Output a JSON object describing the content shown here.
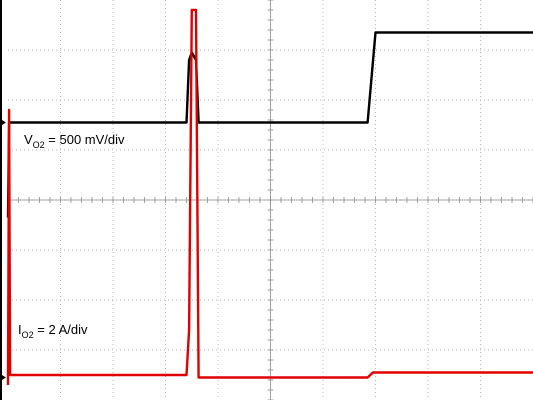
{
  "chart_data": {
    "type": "line",
    "grid": true,
    "grid_divisions": {
      "x": 10,
      "y": 8
    },
    "series": [
      {
        "label_main": "V",
        "label_sub": "O2",
        "label_rest": " = 500 mV/div",
        "color": "#000000",
        "x_div": [
          0,
          0.02,
          0.04,
          3.4,
          3.45,
          3.5,
          3.58,
          3.63,
          3.68,
          6.85,
          7.0,
          10
        ],
        "y_div": [
          4.35,
          2.45,
          2.45,
          2.45,
          1.2,
          1.05,
          1.2,
          2.45,
          2.45,
          2.45,
          0.65,
          0.65
        ]
      },
      {
        "label_main": "I",
        "label_sub": "O2",
        "label_rest": " = 2 A/div",
        "color": "#e00000",
        "x_div": [
          0,
          0.02,
          0.04,
          3.4,
          3.45,
          3.5,
          3.58,
          3.63,
          3.68,
          6.85,
          6.95,
          10
        ],
        "y_div": [
          7.7,
          2.2,
          7.5,
          7.5,
          6.6,
          0.2,
          0.2,
          7.55,
          7.55,
          7.55,
          7.45,
          7.45
        ]
      }
    ],
    "ground_markers_div": [
      2.45,
      7.55
    ]
  }
}
